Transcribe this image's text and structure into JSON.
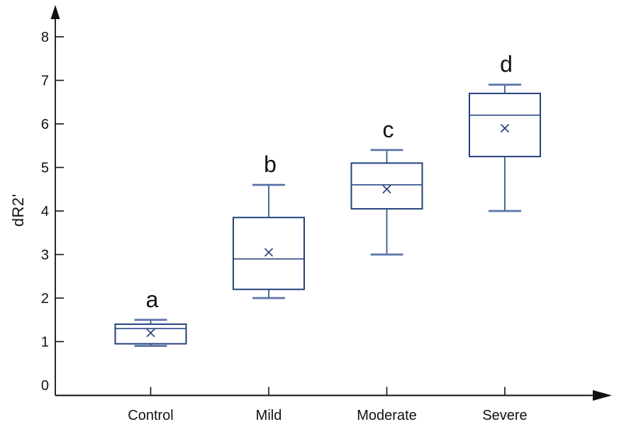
{
  "chart_data": {
    "type": "boxplot",
    "title": "",
    "xlabel": "",
    "ylabel": "dR2'",
    "ylim": [
      0,
      8.5
    ],
    "yticks": [
      0,
      1,
      2,
      3,
      4,
      5,
      6,
      7,
      8
    ],
    "grid": false,
    "legend": "none",
    "categories": [
      "Control",
      "Mild",
      "Moderate",
      "Severe"
    ],
    "series": [
      {
        "category": "Control",
        "letter": "a",
        "min": 0.9,
        "q1": 0.95,
        "median": 1.3,
        "q3": 1.4,
        "max": 1.5,
        "mean": 1.2
      },
      {
        "category": "Mild",
        "letter": "b",
        "min": 2.0,
        "q1": 2.2,
        "median": 2.9,
        "q3": 3.85,
        "max": 4.6,
        "mean": 3.05
      },
      {
        "category": "Moderate",
        "letter": "c",
        "min": 3.0,
        "q1": 4.05,
        "median": 4.6,
        "q3": 5.1,
        "max": 5.4,
        "mean": 4.5
      },
      {
        "category": "Severe",
        "letter": "d",
        "min": 4.0,
        "q1": 5.25,
        "median": 6.2,
        "q3": 6.7,
        "max": 6.9,
        "mean": 5.9
      }
    ],
    "colors": {
      "box_border": "#24417b",
      "box_fill": "#ffffff",
      "median": "#2a4784",
      "whisker": "#3f5890",
      "whisker_cap": "#5a74a8",
      "mean_marker": "#24417b",
      "axis": "#111111",
      "text": "#111111"
    }
  }
}
